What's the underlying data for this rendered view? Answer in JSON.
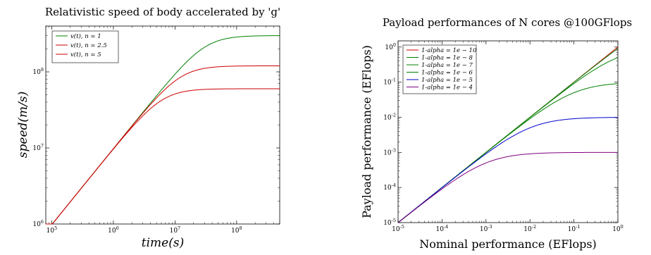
{
  "chart_data": [
    {
      "type": "line",
      "title": "Relativistic speed of body accelerated by 'g'",
      "xlabel": "time(s)",
      "ylabel": "speed(m/s)",
      "xscale": "log",
      "yscale": "log",
      "xlim": [
        80000,
        500000000
      ],
      "ylim": [
        1000000,
        400000000
      ],
      "x_ticks": [
        100000,
        1000000,
        10000000,
        100000000
      ],
      "x_tick_labels": [
        "10^5",
        "10^6",
        "10^7",
        "10^8"
      ],
      "y_ticks": [
        1000000,
        10000000,
        100000000
      ],
      "y_tick_labels": [
        "10^6",
        "10^7",
        "10^8"
      ],
      "legend_position": "upper-left",
      "grid": false,
      "series": [
        {
          "name": "v(t), n = 1",
          "color": "#008000",
          "limit": 300000000
        },
        {
          "name": "v(t), n = 2.5",
          "color": "#cc0000",
          "limit": 120000000
        },
        {
          "name": "v(t), n = 5",
          "color": "#cc0000",
          "limit": 60000000
        }
      ],
      "slope": 9.8
    },
    {
      "type": "line",
      "title": "Payload performances of N cores @100GFlops",
      "xlabel": "Nominal performance (EFlops)",
      "ylabel": "Payload performance (EFlops)",
      "xscale": "log",
      "yscale": "log",
      "xlim": [
        1e-05,
        1
      ],
      "ylim": [
        1e-05,
        1.5
      ],
      "x_ticks": [
        1e-05,
        0.0001,
        0.001,
        0.01,
        0.1,
        1
      ],
      "x_tick_labels": [
        "10^-5",
        "10^-4",
        "10^-3",
        "10^-2",
        "10^-1",
        "10^0"
      ],
      "y_ticks": [
        1e-05,
        0.0001,
        0.001,
        0.01,
        0.1,
        1
      ],
      "y_tick_labels": [
        "10^-5",
        "10^-4",
        "10^-3",
        "10^-2",
        "10^-1",
        "10^0"
      ],
      "legend_position": "upper-left",
      "grid": false,
      "series": [
        {
          "name": "1-alpha = 1e − 10",
          "color": "#cc0000",
          "one_minus_alpha": 1e-10
        },
        {
          "name": "1-alpha = 1e − 8",
          "color": "#008000",
          "one_minus_alpha": 1e-08
        },
        {
          "name": "1-alpha = 1e − 7",
          "color": "#008000",
          "one_minus_alpha": 1e-07
        },
        {
          "name": "1-alpha = 1e − 6",
          "color": "#008000",
          "one_minus_alpha": 1e-06
        },
        {
          "name": "1-alpha = 1e − 5",
          "color": "#0000cc",
          "one_minus_alpha": 1e-05
        },
        {
          "name": "1-alpha = 1e − 4",
          "color": "#800080",
          "one_minus_alpha": 0.0001
        }
      ],
      "single_core_eflops": 1e-07
    }
  ]
}
